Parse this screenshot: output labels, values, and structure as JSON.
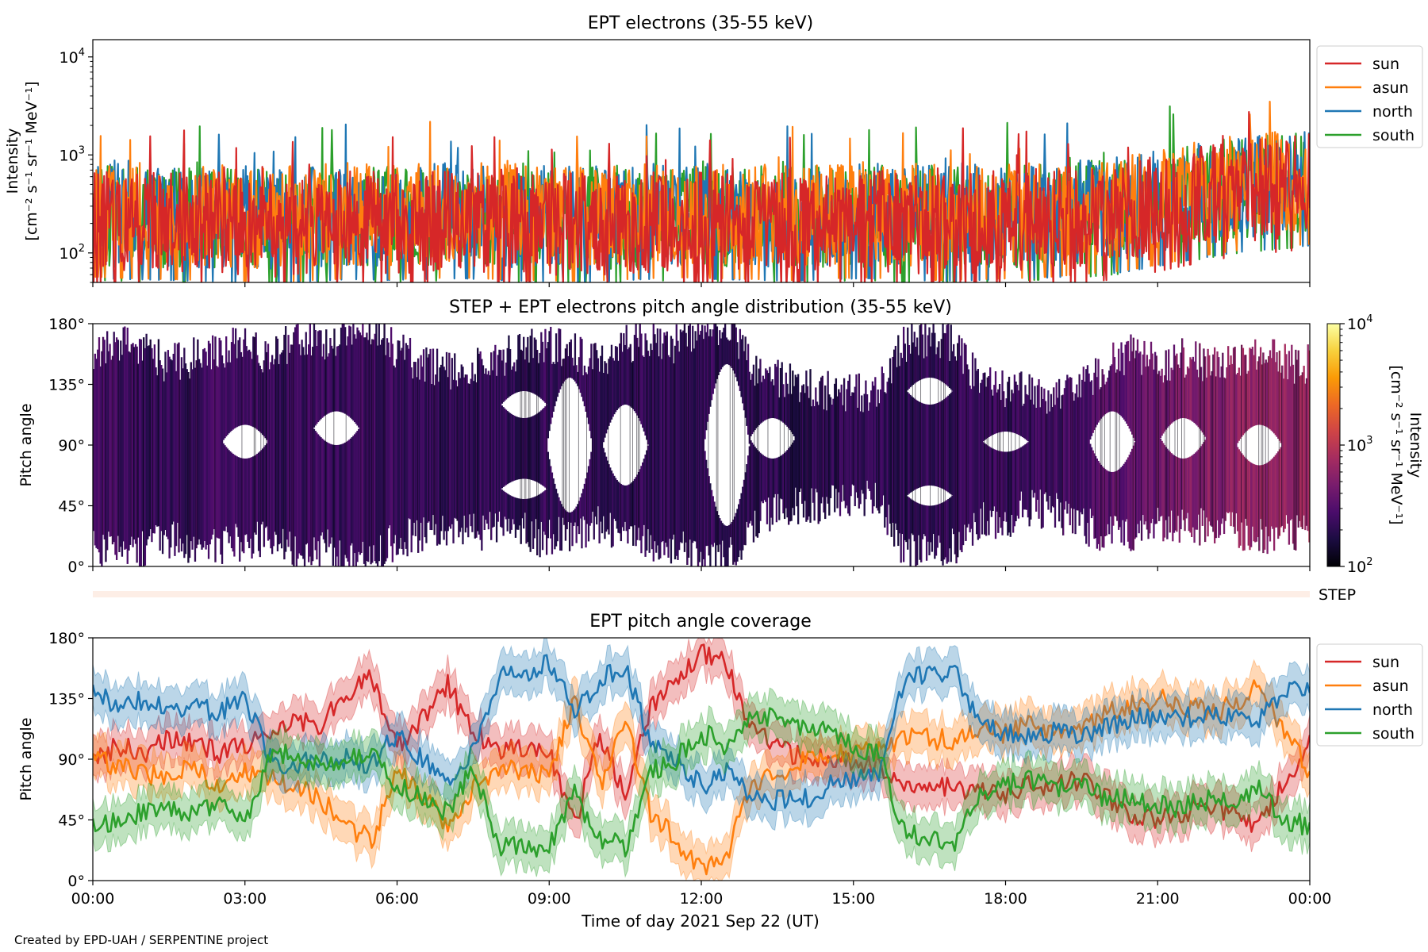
{
  "figure": {
    "credit": "Created by EPD-UAH / SERPENTINE project",
    "xlabel": "Time of day 2021 Sep 22 (UT)",
    "x_ticks": [
      "00:00",
      "03:00",
      "06:00",
      "09:00",
      "12:00",
      "15:00",
      "18:00",
      "21:00",
      "00:00"
    ]
  },
  "chart_data": [
    {
      "type": "line",
      "title": "EPT electrons (35-55 keV)",
      "ylabel_line1": "Intensity",
      "ylabel_line2": "[cm⁻² s⁻¹ sr⁻¹ MeV⁻¹]",
      "yscale": "log",
      "ylim": [
        50,
        15000
      ],
      "y_ticks": [
        {
          "base": "10",
          "exp": "2",
          "value": 100
        },
        {
          "base": "10",
          "exp": "3",
          "value": 1000
        },
        {
          "base": "10",
          "exp": "4",
          "value": 10000
        }
      ],
      "xlim_hours": [
        0,
        24
      ],
      "legend": "outside-right",
      "series": [
        {
          "name": "sun",
          "color": "#d62728",
          "values": [
            220,
            210,
            200,
            205,
            195,
            190,
            200,
            210,
            205,
            210,
            215,
            205,
            200,
            195,
            200,
            210,
            215,
            210,
            205,
            200,
            210,
            215,
            205,
            200,
            205,
            210,
            220,
            230,
            250,
            300,
            360,
            420,
            460,
            500
          ]
        },
        {
          "name": "asun",
          "color": "#ff7f0e",
          "values": [
            260,
            250,
            245,
            240,
            235,
            230,
            240,
            250,
            245,
            250,
            255,
            245,
            240,
            235,
            240,
            250,
            255,
            250,
            245,
            240,
            250,
            255,
            245,
            240,
            245,
            250,
            260,
            280,
            300,
            350,
            420,
            480,
            520,
            560
          ]
        },
        {
          "name": "north",
          "color": "#1f77b4",
          "values": [
            250,
            245,
            240,
            235,
            230,
            228,
            235,
            245,
            240,
            245,
            250,
            240,
            235,
            230,
            235,
            245,
            250,
            245,
            240,
            235,
            245,
            250,
            240,
            235,
            240,
            245,
            255,
            270,
            290,
            340,
            400,
            460,
            500,
            540
          ]
        },
        {
          "name": "south",
          "color": "#2ca02c",
          "values": [
            240,
            235,
            230,
            225,
            220,
            218,
            225,
            235,
            230,
            235,
            240,
            230,
            225,
            220,
            225,
            235,
            240,
            235,
            230,
            225,
            235,
            240,
            230,
            225,
            230,
            235,
            245,
            260,
            280,
            330,
            390,
            450,
            490,
            530
          ]
        }
      ]
    },
    {
      "type": "heatmap",
      "title": "STEP + EPT electrons pitch angle distribution (35-55 keV)",
      "ylabel": "Pitch angle",
      "y_ticks": [
        "0°",
        "45°",
        "90°",
        "135°",
        "180°"
      ],
      "ylim": [
        0,
        180
      ],
      "xlim_hours": [
        0,
        24
      ],
      "colorbar": {
        "scale": "log",
        "range": [
          100,
          10000
        ],
        "ticks": [
          {
            "base": "10",
            "exp": "2"
          },
          {
            "base": "10",
            "exp": "3"
          },
          {
            "base": "10",
            "exp": "4"
          }
        ],
        "label_line1": "Intensity",
        "label_line2": "[cm⁻² s⁻¹ sr⁻¹ MeV⁻¹]",
        "colormap": [
          "#000004",
          "#1b0c41",
          "#4a0c6b",
          "#781c6d",
          "#a52c60",
          "#cf4446",
          "#ed6925",
          "#fb9b06",
          "#f7d13d",
          "#fcffa4"
        ]
      },
      "coverage": {
        "hours": [
          0,
          0.5,
          1,
          1.5,
          2,
          2.5,
          3,
          3.5,
          4,
          4.5,
          5,
          5.5,
          6,
          6.5,
          7,
          7.5,
          8,
          8.5,
          9,
          9.5,
          10,
          10.5,
          11,
          11.5,
          12,
          12.5,
          13,
          13.5,
          14,
          14.5,
          15,
          15.5,
          16,
          16.5,
          17,
          17.5,
          18,
          18.5,
          19,
          19.5,
          20,
          20.5,
          21,
          21.5,
          22,
          22.5,
          23,
          23.5,
          24
        ],
        "min_deg": [
          15,
          10,
          12,
          20,
          15,
          15,
          18,
          20,
          10,
          15,
          5,
          5,
          20,
          25,
          30,
          25,
          30,
          25,
          20,
          25,
          30,
          20,
          15,
          15,
          5,
          5,
          30,
          40,
          45,
          45,
          50,
          50,
          10,
          10,
          15,
          35,
          35,
          45,
          40,
          30,
          25,
          20,
          30,
          30,
          30,
          25,
          20,
          25,
          25
        ],
        "max_deg": [
          160,
          165,
          160,
          150,
          155,
          160,
          165,
          155,
          170,
          165,
          175,
          178,
          160,
          150,
          145,
          150,
          155,
          160,
          165,
          160,
          150,
          165,
          170,
          165,
          178,
          178,
          150,
          140,
          135,
          130,
          128,
          130,
          165,
          170,
          165,
          135,
          130,
          130,
          125,
          135,
          150,
          160,
          150,
          155,
          150,
          155,
          160,
          150,
          150
        ],
        "intensity": [
          260,
          240,
          230,
          220,
          230,
          240,
          235,
          220,
          230,
          240,
          230,
          235,
          230,
          220,
          215,
          220,
          215,
          210,
          215,
          210,
          215,
          210,
          215,
          210,
          220,
          215,
          210,
          205,
          200,
          205,
          200,
          205,
          210,
          215,
          210,
          220,
          230,
          240,
          250,
          280,
          320,
          370,
          420,
          480,
          540,
          600,
          640,
          680,
          700
        ]
      },
      "empty_regions": [
        {
          "t": 3.0,
          "lo": 80,
          "hi": 105
        },
        {
          "t": 4.8,
          "lo": 90,
          "hi": 115
        },
        {
          "t": 8.5,
          "lo": 50,
          "hi": 65
        },
        {
          "t": 8.5,
          "lo": 110,
          "hi": 130
        },
        {
          "t": 9.4,
          "lo": 40,
          "hi": 140
        },
        {
          "t": 10.5,
          "lo": 60,
          "hi": 120
        },
        {
          "t": 12.5,
          "lo": 30,
          "hi": 150
        },
        {
          "t": 13.4,
          "lo": 80,
          "hi": 110
        },
        {
          "t": 16.5,
          "lo": 45,
          "hi": 60
        },
        {
          "t": 16.5,
          "lo": 120,
          "hi": 140
        },
        {
          "t": 18.0,
          "lo": 85,
          "hi": 100
        },
        {
          "t": 20.1,
          "lo": 70,
          "hi": 115
        },
        {
          "t": 21.5,
          "lo": 80,
          "hi": 110
        },
        {
          "t": 23.0,
          "lo": 75,
          "hi": 105
        }
      ],
      "step_label": "STEP"
    },
    {
      "type": "line",
      "title": "EPT pitch angle coverage",
      "ylabel": "Pitch angle",
      "y_ticks": [
        "0°",
        "45°",
        "90°",
        "135°",
        "180°"
      ],
      "ylim": [
        0,
        180
      ],
      "xlim_hours": [
        0,
        24
      ],
      "legend": "outside-right",
      "shaded_band_deg": 15,
      "hours": [
        0,
        0.5,
        1,
        1.5,
        2,
        2.5,
        3,
        3.5,
        4,
        4.5,
        5,
        5.5,
        6,
        6.5,
        7,
        7.5,
        8,
        8.5,
        9,
        9.5,
        10,
        10.5,
        11,
        11.5,
        12,
        12.5,
        13,
        13.5,
        14,
        14.5,
        15,
        15.5,
        16,
        16.5,
        17,
        17.5,
        18,
        18.5,
        19,
        19.5,
        20,
        20.5,
        21,
        21.5,
        22,
        22.5,
        23,
        23.5,
        24
      ],
      "series": [
        {
          "name": "sun",
          "color": "#d62728",
          "values": [
            90,
            100,
            95,
            105,
            100,
            95,
            100,
            110,
            120,
            115,
            140,
            150,
            100,
            120,
            145,
            110,
            95,
            100,
            95,
            40,
            110,
            60,
            130,
            150,
            170,
            160,
            110,
            100,
            90,
            90,
            90,
            85,
            70,
            70,
            70,
            65,
            65,
            70,
            70,
            75,
            60,
            50,
            45,
            50,
            55,
            50,
            40,
            75,
            100
          ]
        },
        {
          "name": "asun",
          "color": "#ff7f0e",
          "values": [
            90,
            85,
            80,
            75,
            85,
            70,
            80,
            75,
            70,
            60,
            40,
            30,
            80,
            65,
            40,
            70,
            85,
            80,
            80,
            135,
            70,
            120,
            50,
            30,
            10,
            20,
            70,
            80,
            90,
            95,
            95,
            95,
            105,
            105,
            105,
            110,
            110,
            115,
            110,
            110,
            125,
            130,
            135,
            130,
            125,
            130,
            145,
            110,
            80
          ]
        },
        {
          "name": "north",
          "color": "#1f77b4",
          "values": [
            140,
            130,
            135,
            125,
            130,
            125,
            135,
            90,
            85,
            90,
            90,
            85,
            110,
            90,
            75,
            95,
            150,
            155,
            160,
            125,
            150,
            160,
            100,
            90,
            70,
            80,
            60,
            60,
            60,
            70,
            75,
            80,
            145,
            155,
            155,
            115,
            110,
            105,
            110,
            105,
            115,
            120,
            120,
            120,
            125,
            120,
            120,
            140,
            145
          ]
        },
        {
          "name": "south",
          "color": "#2ca02c",
          "values": [
            40,
            45,
            50,
            55,
            50,
            60,
            45,
            90,
            95,
            85,
            90,
            95,
            70,
            60,
            50,
            85,
            25,
            25,
            25,
            65,
            30,
            25,
            80,
            90,
            110,
            100,
            125,
            120,
            115,
            110,
            100,
            95,
            35,
            30,
            30,
            65,
            70,
            75,
            70,
            70,
            60,
            60,
            55,
            55,
            60,
            60,
            70,
            45,
            40
          ]
        }
      ]
    }
  ]
}
